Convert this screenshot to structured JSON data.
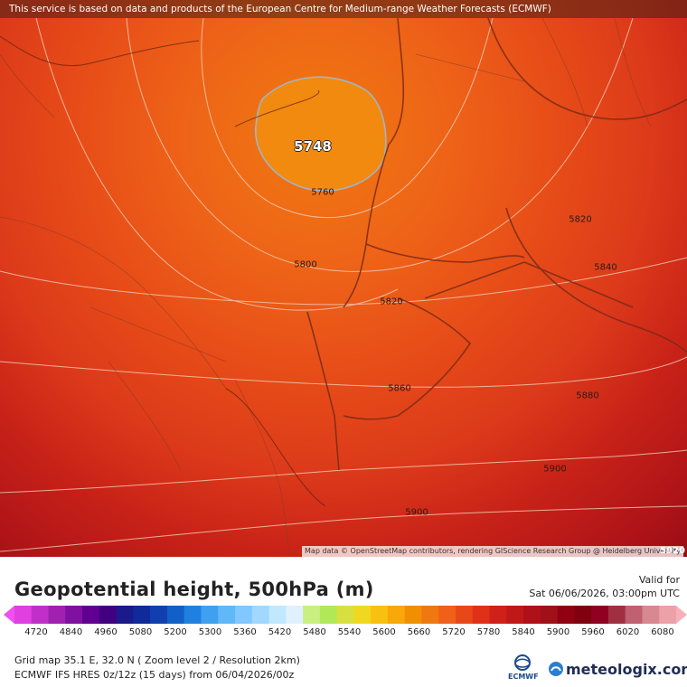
{
  "banner": "This service is based on data and products of the European Centre for Medium-range Weather Forecasts (ECMWF)",
  "attribution": "Map data © OpenStreetMap contributors, rendering GIScience Research Group @ Heidelberg University",
  "contour_labels": [
    "5748",
    "5760",
    "5800",
    "5820",
    "5820",
    "5840",
    "5860",
    "5880",
    "5900",
    "5900"
  ],
  "edge_label": "5920",
  "legend": {
    "title": "Geopotential height, 500hPa (m)",
    "valid_label": "Valid for",
    "valid_time": "Sat 06/06/2026, 03:00pm UTC",
    "scale_labels": [
      "4720",
      "4840",
      "4960",
      "5080",
      "5200",
      "5300",
      "5360",
      "5420",
      "5480",
      "5540",
      "5600",
      "5660",
      "5720",
      "5780",
      "5840",
      "5900",
      "5960",
      "6020",
      "6080"
    ],
    "scale_colors": [
      "#f050f0",
      "#e040e0",
      "#c030c8",
      "#a020b0",
      "#8010a0",
      "#600090",
      "#400080",
      "#1a1a8a",
      "#102a9a",
      "#1040b0",
      "#1060c8",
      "#2080e0",
      "#40a0f0",
      "#60b8f8",
      "#80c8ff",
      "#a0d8ff",
      "#c0e8ff",
      "#e0f0ff",
      "#c8f080",
      "#b0e858",
      "#d8e040",
      "#f0d820",
      "#f8c010",
      "#f8a808",
      "#f09000",
      "#f07810",
      "#f06018",
      "#e84818",
      "#e03018",
      "#d02018",
      "#c01818",
      "#b01018",
      "#a01018",
      "#900010",
      "#800010",
      "#900020",
      "#a03040",
      "#c06070",
      "#d88890",
      "#eca0a8",
      "#f8b0b8"
    ]
  },
  "grid_info": "Grid map 35.1 E, 32.0 N ( Zoom level 2 / Resolution 2km)",
  "model_info": "ECMWF IFS HRES 0z/12z (15 days) from 06/04/2026/00z",
  "ecmwf_logo_text": "ECMWF",
  "brand": "meteologix.com"
}
